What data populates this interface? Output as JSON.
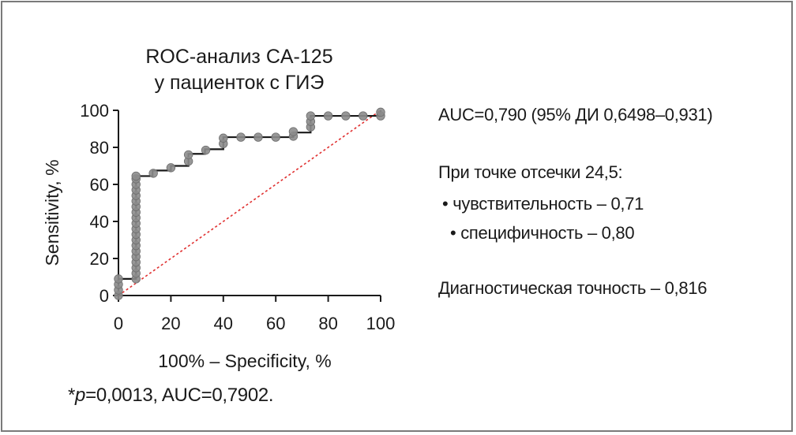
{
  "chart_data": {
    "type": "line",
    "title_lines": [
      "ROC-анализ CA-125",
      "у пациенток с ГИЭ"
    ],
    "xlabel": "100% – Specificity, %",
    "ylabel": "Sensitivity, %",
    "xlim": [
      0,
      100
    ],
    "ylim": [
      0,
      100
    ],
    "x_ticks": [
      "0",
      "20",
      "40",
      "60",
      "80",
      "100"
    ],
    "y_ticks": [
      "0",
      "20",
      "40",
      "60",
      "80",
      "100"
    ],
    "grid": false,
    "series": [
      {
        "color": "#1a1a1a",
        "marker_color": "#8c8c8c",
        "step_points": [
          [
            0,
            0
          ],
          [
            0,
            9
          ],
          [
            6.7,
            9
          ],
          [
            6.7,
            64.5
          ],
          [
            13,
            64.5
          ],
          [
            13,
            67.5
          ],
          [
            20,
            67.5
          ],
          [
            20,
            70
          ],
          [
            26.7,
            70
          ],
          [
            26.7,
            76.5
          ],
          [
            33,
            76.5
          ],
          [
            33,
            79
          ],
          [
            40,
            79
          ],
          [
            40,
            85.5
          ],
          [
            66.7,
            85.5
          ],
          [
            66.7,
            88
          ],
          [
            73.3,
            88
          ],
          [
            73.3,
            97
          ],
          [
            100,
            97
          ],
          [
            100,
            100
          ]
        ],
        "marker_points": [
          [
            0,
            0
          ],
          [
            0,
            3
          ],
          [
            0,
            6
          ],
          [
            0,
            9
          ],
          [
            6.7,
            9
          ],
          [
            6.7,
            12
          ],
          [
            6.7,
            15
          ],
          [
            6.7,
            18
          ],
          [
            6.7,
            21
          ],
          [
            6.7,
            24
          ],
          [
            6.7,
            27
          ],
          [
            6.7,
            30
          ],
          [
            6.7,
            33
          ],
          [
            6.7,
            36
          ],
          [
            6.7,
            39
          ],
          [
            6.7,
            42
          ],
          [
            6.7,
            45
          ],
          [
            6.7,
            48
          ],
          [
            6.7,
            51
          ],
          [
            6.7,
            54
          ],
          [
            6.7,
            57
          ],
          [
            6.7,
            60
          ],
          [
            6.7,
            63
          ],
          [
            6.7,
            64.5
          ],
          [
            13.3,
            66
          ],
          [
            20,
            69
          ],
          [
            26.7,
            72.5
          ],
          [
            26.7,
            76
          ],
          [
            33.3,
            78.5
          ],
          [
            40,
            82
          ],
          [
            40,
            85
          ],
          [
            46.7,
            85.5
          ],
          [
            53.3,
            85.5
          ],
          [
            60,
            85.5
          ],
          [
            66.7,
            86
          ],
          [
            66.7,
            88.5
          ],
          [
            73.3,
            91
          ],
          [
            73.3,
            94
          ],
          [
            73.3,
            97
          ],
          [
            80,
            97
          ],
          [
            86.7,
            97
          ],
          [
            93.3,
            97
          ],
          [
            100,
            97
          ],
          [
            100,
            99
          ]
        ]
      }
    ],
    "reference_line": {
      "from": [
        0,
        0
      ],
      "to": [
        100,
        100
      ],
      "color": "#e03030",
      "style": "dotted"
    }
  },
  "annotations": {
    "auc": "AUC=0,790 (95% ДИ 0,6498–0,931)",
    "cutoff": "При точке отсечки 24,5:",
    "sensitivity": "• чувствительность – 0,71",
    "specificity": "• специфичность – 0,80",
    "accuracy": "Диагностическая точность – 0,816"
  },
  "footnote": {
    "star": "*",
    "p_symbol": "p",
    "rest": "=0,0013, AUC=0,7902."
  }
}
